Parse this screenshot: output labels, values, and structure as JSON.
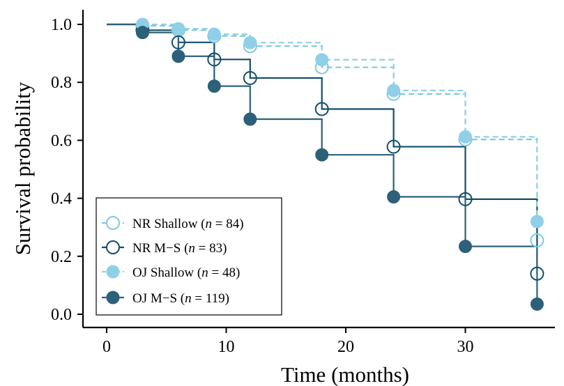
{
  "chart_data": {
    "type": "line",
    "title": "",
    "xlabel": "Time (months)",
    "ylabel": "Survival probability",
    "xlim": [
      0,
      36
    ],
    "ylim": [
      0,
      1
    ],
    "xticks": [
      "0",
      "10",
      "20",
      "30"
    ],
    "yticks": [
      "0.0",
      "0.2",
      "0.4",
      "0.6",
      "0.8",
      "1.0"
    ],
    "xtick_values": [
      0,
      10,
      20,
      30
    ],
    "ytick_values": [
      0,
      0.2,
      0.4,
      0.6,
      0.8,
      1.0
    ],
    "grid": false,
    "legend_position": "bottom-left",
    "step": true,
    "series": [
      {
        "name": "NR Shallow (n = 84)",
        "legend": {
          "prefix": "NR Shallow (",
          "n": "n",
          "suffix": " = 84)"
        },
        "color": "#7fc8e2",
        "line": "dashed",
        "marker": "open-circle",
        "x": [
          0,
          3,
          6,
          9,
          12,
          18,
          24,
          30,
          36
        ],
        "y": [
          1.0,
          0.995,
          0.98,
          0.96,
          0.925,
          0.852,
          0.76,
          0.603,
          0.255
        ]
      },
      {
        "name": "NR M−S (n = 83)",
        "legend": {
          "prefix": "NR M−S (",
          "n": "n",
          "suffix": " = 83)"
        },
        "color": "#124e6a",
        "line": "solid",
        "marker": "open-circle",
        "x": [
          0,
          3,
          6,
          9,
          12,
          18,
          24,
          30,
          36
        ],
        "y": [
          1.0,
          0.98,
          0.938,
          0.879,
          0.815,
          0.708,
          0.578,
          0.397,
          0.14
        ]
      },
      {
        "name": "OJ Shallow (n = 48)",
        "legend": {
          "prefix": "OJ Shallow (",
          "n": "n",
          "suffix": " = 48)"
        },
        "color": "#8fd0e8",
        "line": "dashed",
        "marker": "filled-circle",
        "x": [
          0,
          3,
          6,
          9,
          12,
          18,
          24,
          30,
          36
        ],
        "y": [
          1.0,
          1.0,
          0.985,
          0.966,
          0.937,
          0.878,
          0.772,
          0.612,
          0.32
        ]
      },
      {
        "name": "OJ M−S (n = 119)",
        "legend": {
          "prefix": "OJ M−S (",
          "n": "n",
          "suffix": " = 119)"
        },
        "color": "#2d6079",
        "line": "solid",
        "marker": "filled-circle",
        "x": [
          0,
          3,
          6,
          9,
          12,
          18,
          24,
          30,
          36
        ],
        "y": [
          1.0,
          0.972,
          0.89,
          0.787,
          0.673,
          0.55,
          0.405,
          0.234,
          0.035
        ]
      }
    ]
  }
}
